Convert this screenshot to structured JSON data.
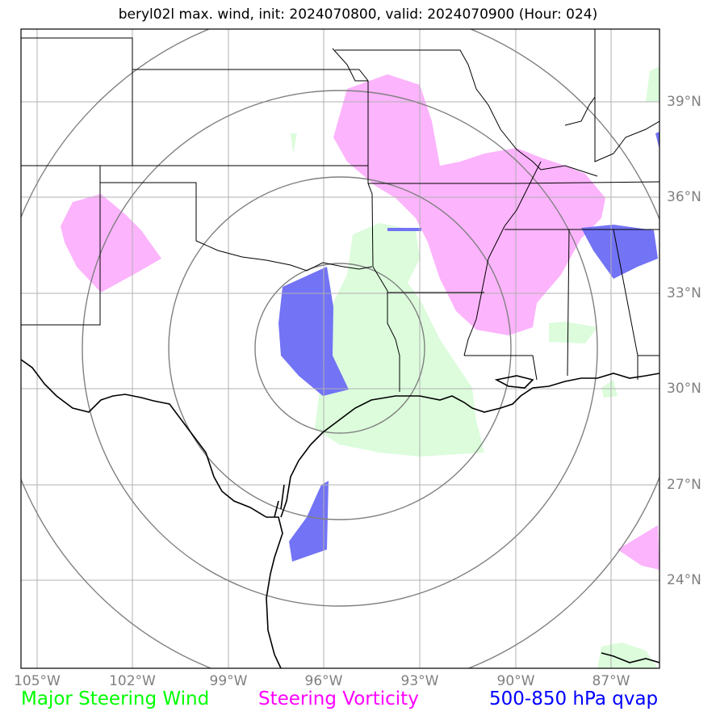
{
  "title": "beryl02l max. wind, init: 2024070800, valid: 2024070900 (Hour: 024)",
  "lon_labels": [
    "105°W",
    "102°W",
    "99°W",
    "96°W",
    "93°W",
    "90°W",
    "87°W"
  ],
  "lat_labels": [
    "39°N",
    "36°N",
    "33°N",
    "30°N",
    "27°N",
    "24°N"
  ],
  "legend": {
    "steering_wind": {
      "label": "Major Steering Wind",
      "color": "#00ff00"
    },
    "steering_vorticity": {
      "label": "Steering Vorticity",
      "color": "#ff00ff"
    },
    "qvap": {
      "label": "500-850 hPa qvap",
      "color": "#0000ff"
    }
  },
  "colors": {
    "grid": "#b0b0b0",
    "range_rings": "#808080",
    "coastline": "#000000",
    "wind_fill": "#dcfcdc",
    "vorticity_fill": "#fcb4fc",
    "qvap_fill": "#6b6bf5"
  }
}
